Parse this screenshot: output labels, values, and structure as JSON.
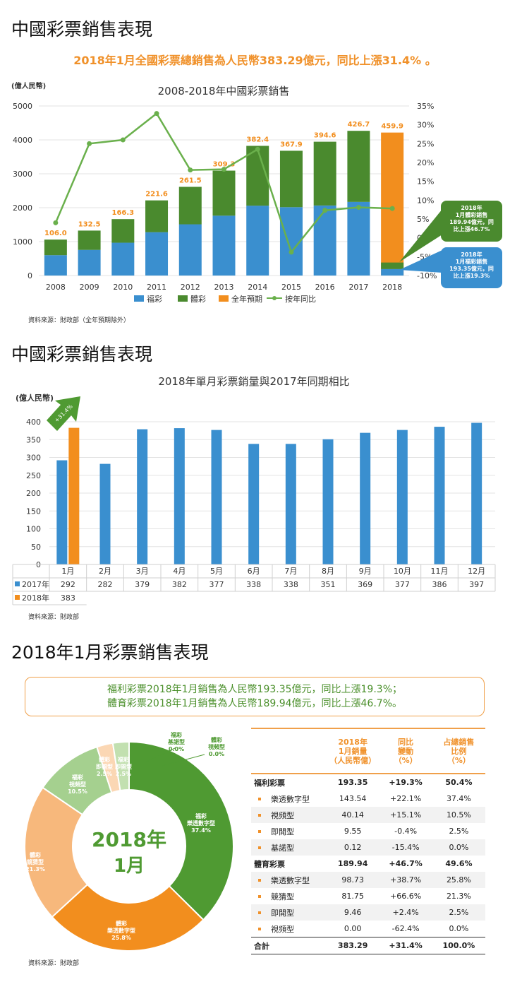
{
  "section1_title": "中國彩票銷售表現",
  "headline": "2018年1月全國彩票總銷售為人民幣383.29億元，同比上漲31.4% 。",
  "chart1_unit": "(億人民幣)",
  "source1": "資料來源：財政部（全年預期除外）",
  "callouts": {
    "sports_year": "2018年",
    "sports_l1": "1月體彩銷售",
    "sports_l2": "189.94億元，同",
    "sports_l3": "比上漲46.7%",
    "welfare_year": "2018年",
    "welfare_l1": "1月福彩銷售",
    "welfare_l2": "193.35億元，同",
    "welfare_l3": "比上漲19.3%"
  },
  "section2_title": "中國彩票銷售表現",
  "chart2_unit": "(億人民幣)",
  "arrow_label": "+31.4%",
  "source2": "資料來源：財政部",
  "section3_title": "2018年1月彩票銷售表現",
  "summary": {
    "line1": "福利彩票2018年1月銷售為人民幣193.35億元，同比上漲19.3%；",
    "line2": "體育彩票2018年1月銷售為人民幣189.94億元，同比上漲46.7%。"
  },
  "source3": "資料來源：財政部",
  "colors": {
    "welfare": "#3a8fcf",
    "sports": "#4a8a2e",
    "forecast": "#f28e1e",
    "yoy": "#6ab04c",
    "accent": "#f0912a"
  },
  "chart_data": [
    {
      "type": "bar",
      "title": "2008-2018年中國彩票銷售",
      "ylabel": "(億人民幣)",
      "ylim": [
        0,
        5000
      ],
      "y2lim": [
        -10,
        35
      ],
      "yticks": [
        "0",
        "1000",
        "2000",
        "3000",
        "4000",
        "5000"
      ],
      "y2ticks": [
        "-10%",
        "-5%",
        "0%",
        "5%",
        "10%",
        "15%",
        "20%",
        "25%",
        "30%",
        "35%"
      ],
      "categories": [
        "2008",
        "2009",
        "2010",
        "2011",
        "2012",
        "2013",
        "2014",
        "2015",
        "2016",
        "2017",
        "2018"
      ],
      "series": [
        {
          "name": "福彩",
          "values": [
            600,
            756,
            968,
            1278,
            1510,
            1765,
            2060,
            2015,
            2065,
            2170,
            193.35
          ]
        },
        {
          "name": "體彩",
          "values": [
            460,
            569,
            695,
            938,
            1105,
            1328,
            1764,
            1664,
            1881,
            2097,
            189.94
          ]
        },
        {
          "name": "全年預期",
          "values": [
            null,
            null,
            null,
            null,
            null,
            null,
            null,
            null,
            null,
            null,
            4216
          ]
        },
        {
          "name": "按年同比",
          "type": "line",
          "values": [
            4,
            25,
            26,
            33,
            18,
            18.2,
            23.5,
            -3.8,
            7.3,
            8.1,
            7.8
          ]
        }
      ],
      "data_labels": [
        "106.0",
        "132.5",
        "166.3",
        "221.6",
        "261.5",
        "309.3",
        "382.4",
        "367.9",
        "394.6",
        "426.7",
        "459.9"
      ],
      "legend": "bottom"
    },
    {
      "type": "bar",
      "title": "2018年單月彩票銷量與2017年同期相比",
      "ylabel": "(億人民幣)",
      "ylim": [
        0,
        400
      ],
      "yticks": [
        "0",
        "50",
        "100",
        "150",
        "200",
        "250",
        "300",
        "350",
        "400"
      ],
      "categories": [
        "1月",
        "2月",
        "3月",
        "4月",
        "5月",
        "6月",
        "7月",
        "8月",
        "9月",
        "10月",
        "11月",
        "12月"
      ],
      "series": [
        {
          "name": "2017年",
          "values": [
            292,
            282,
            379,
            382,
            377,
            338,
            338,
            351,
            369,
            377,
            386,
            397
          ]
        },
        {
          "name": "2018年",
          "values": [
            383,
            null,
            null,
            null,
            null,
            null,
            null,
            null,
            null,
            null,
            null,
            null
          ]
        }
      ],
      "legend": "table"
    },
    {
      "type": "pie",
      "center_label": [
        "2018年",
        "1月"
      ],
      "slices": [
        {
          "label": [
            "福彩",
            "樂透數字型",
            "37.4%"
          ],
          "value": 37.4,
          "color": "#4f9a32"
        },
        {
          "label": [
            "體彩",
            "樂透數字型",
            "25.8%"
          ],
          "value": 25.8,
          "color": "#f28e1e"
        },
        {
          "label": [
            "體彩",
            "競猜型",
            "21.3%"
          ],
          "value": 21.3,
          "color": "#f7b87c"
        },
        {
          "label": [
            "福彩",
            "視頻型",
            "10.5%"
          ],
          "value": 10.5,
          "color": "#a5d08f"
        },
        {
          "label": [
            "體彩",
            "即開型",
            "2.5%"
          ],
          "value": 2.5,
          "color": "#fbd7b4"
        },
        {
          "label": [
            "福彩",
            "即開型",
            "2.5%"
          ],
          "value": 2.5,
          "color": "#c2e0b0"
        },
        {
          "label": [
            "福彩",
            "基諾型",
            "0.0%"
          ],
          "value": 0.0,
          "color": "#4f9a32"
        },
        {
          "label": [
            "體彩",
            "視頻型",
            "0.0%"
          ],
          "value": 0.0,
          "color": "#4f9a32"
        }
      ]
    },
    {
      "type": "table",
      "columns": [
        "",
        "2018年\n1月銷量\n（人民幣億）",
        "同比\n變動\n（%）",
        "占總銷售\n比例\n（%）"
      ],
      "rows": [
        {
          "label": "福利彩票",
          "kind": "group",
          "cells": [
            "193.35",
            "+19.3%",
            "50.4%"
          ]
        },
        {
          "label": "樂透數字型",
          "kind": "item",
          "cells": [
            "143.54",
            "+22.1%",
            "37.4%"
          ]
        },
        {
          "label": "視頻型",
          "kind": "item",
          "cells": [
            "40.14",
            "+15.1%",
            "10.5%"
          ]
        },
        {
          "label": "即開型",
          "kind": "item",
          "cells": [
            "9.55",
            "-0.4%",
            "2.5%"
          ]
        },
        {
          "label": "基諾型",
          "kind": "item",
          "cells": [
            "0.12",
            "-15.4%",
            "0.0%"
          ]
        },
        {
          "label": "體育彩票",
          "kind": "group",
          "cells": [
            "189.94",
            "+46.7%",
            "49.6%"
          ]
        },
        {
          "label": "樂透數字型",
          "kind": "item",
          "cells": [
            "98.73",
            "+38.7%",
            "25.8%"
          ]
        },
        {
          "label": "競猜型",
          "kind": "item",
          "cells": [
            "81.75",
            "+66.6%",
            "21.3%"
          ]
        },
        {
          "label": "即開型",
          "kind": "item",
          "cells": [
            "9.46",
            "+2.4%",
            "2.5%"
          ]
        },
        {
          "label": "視頻型",
          "kind": "item",
          "cells": [
            "0.00",
            "-62.4%",
            "0.0%"
          ]
        },
        {
          "label": "合計",
          "kind": "total",
          "cells": [
            "383.29",
            "+31.4%",
            "100.0%"
          ]
        }
      ]
    }
  ]
}
